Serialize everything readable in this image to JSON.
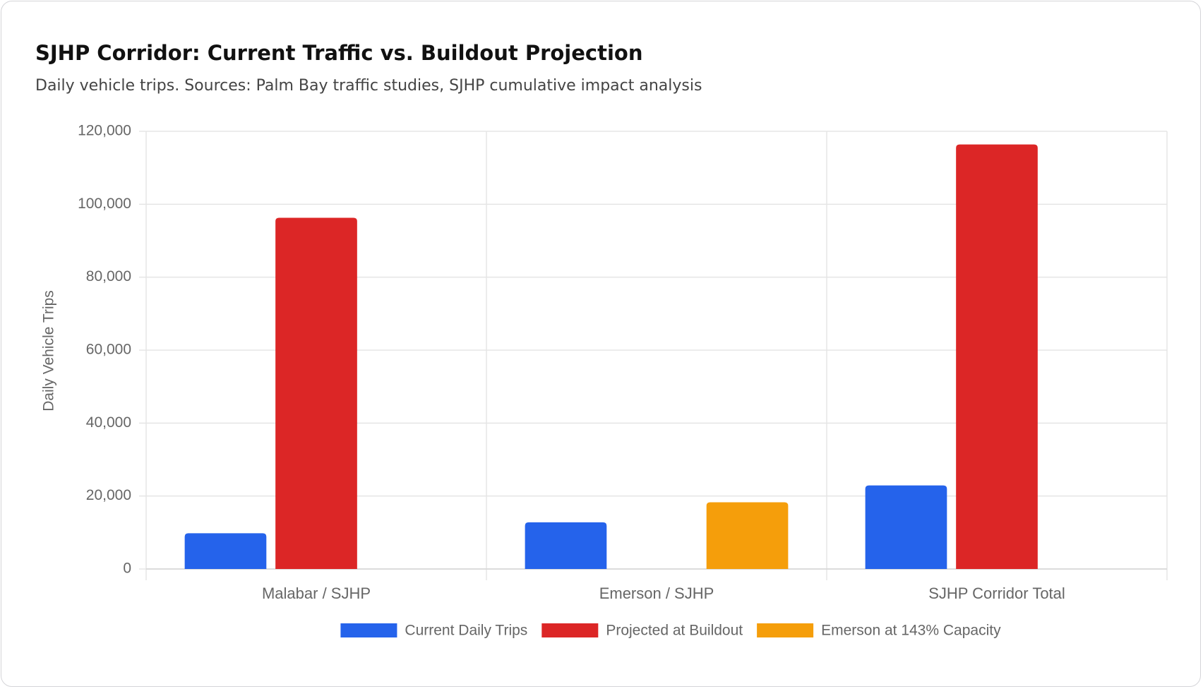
{
  "chart_data": {
    "type": "bar",
    "title": "SJHP Corridor: Current Traffic vs. Buildout Projection",
    "subtitle": "Daily vehicle trips. Sources: Palm Bay traffic studies, SJHP cumulative impact analysis",
    "y_label": "Daily Vehicle Trips",
    "categories": [
      "Malabar / SJHP",
      "Emerson / SJHP",
      "SJHP Corridor Total"
    ],
    "series": [
      {
        "name": "Current Daily Trips",
        "color": "#2563eb",
        "values": [
          9800,
          12800,
          22900
        ]
      },
      {
        "name": "Projected at Buildout",
        "color": "#dc2626",
        "values": [
          96300,
          null,
          116400
        ]
      },
      {
        "name": "Emerson at 143% Capacity",
        "color": "#f59e0b",
        "values": [
          null,
          18300,
          null
        ]
      }
    ],
    "ylim": [
      0,
      120000
    ],
    "yticks": [
      0,
      {
        "value": 20000,
        "label": "20,000"
      },
      {
        "value": 40000,
        "label": "40,000"
      },
      {
        "value": 60000,
        "label": "60,000"
      },
      {
        "value": 80000,
        "label": "80,000"
      },
      {
        "value": 100000,
        "label": "100,000"
      },
      {
        "value": 120000,
        "label": "120,000"
      }
    ],
    "grid": true,
    "legend": "bottom"
  }
}
